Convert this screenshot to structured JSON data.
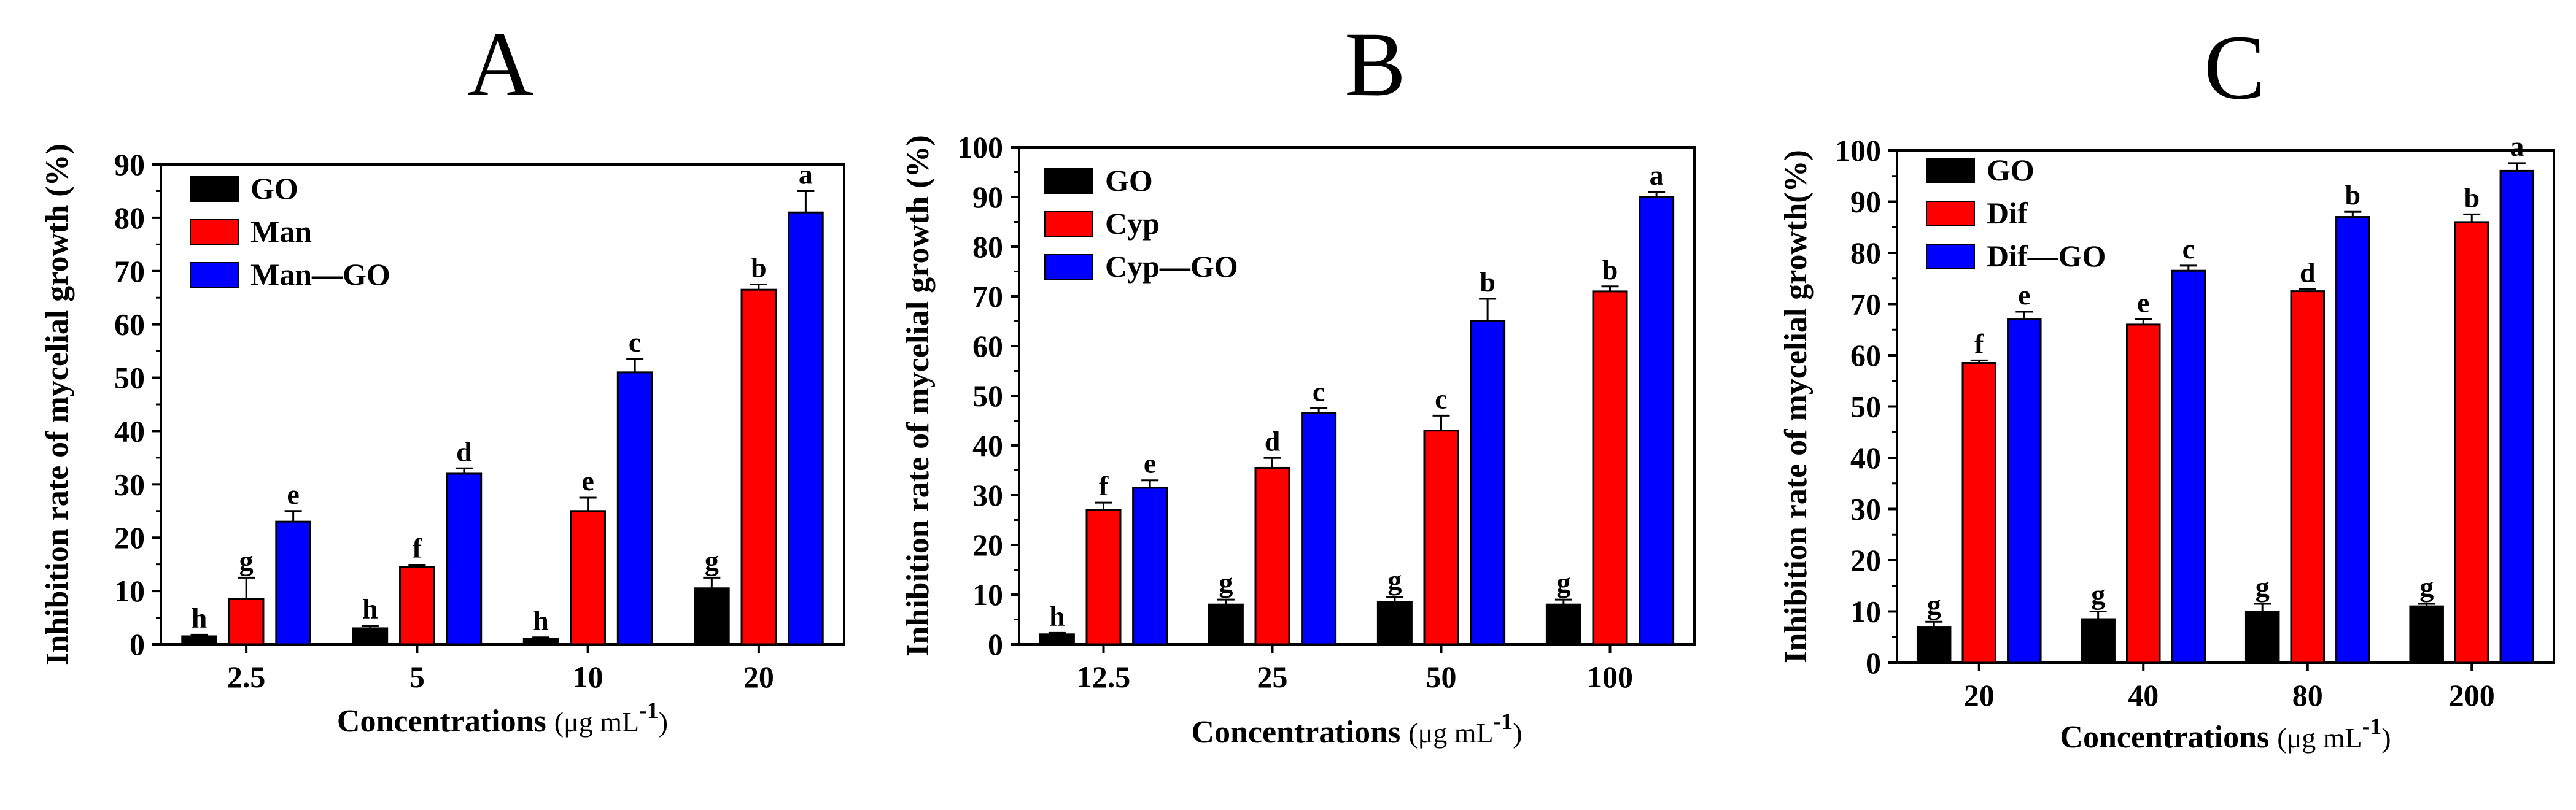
{
  "chart_data": [
    {
      "type": "bar",
      "panel_label": "A",
      "ylabel": "Inhibition rate of mycelial growth (%)",
      "xlabel_main": "Concentrations",
      "xlabel_unit": "(μg mL",
      "xlabel_sup": "-1",
      "xlabel_close": ")",
      "categories": [
        "2.5",
        "5",
        "10",
        "20"
      ],
      "ylim": [
        0,
        90
      ],
      "yticks": [
        "0",
        "10",
        "20",
        "30",
        "40",
        "50",
        "60",
        "70",
        "80",
        "90"
      ],
      "legend_position": "top-left",
      "series": [
        {
          "name": "GO",
          "color": "#000000",
          "values": [
            1.5,
            3,
            1,
            10.5
          ],
          "errors": [
            0.3,
            0.5,
            0.3,
            2
          ],
          "labels": [
            "h",
            "h",
            "h",
            "g"
          ]
        },
        {
          "name": "Man",
          "color": "#ff0000",
          "values": [
            8.5,
            14.5,
            25,
            66.5
          ],
          "errors": [
            4,
            0.4,
            2.5,
            1
          ],
          "labels": [
            "g",
            "f",
            "e",
            "b"
          ]
        },
        {
          "name": "Man—GO",
          "color": "#0000ff",
          "values": [
            23,
            32,
            51,
            81
          ],
          "errors": [
            2,
            1,
            2.5,
            4
          ],
          "labels": [
            "e",
            "d",
            "c",
            "a"
          ]
        }
      ]
    },
    {
      "type": "bar",
      "panel_label": "B",
      "ylabel": "Inhibition rate of mycelial growth (%)",
      "xlabel_main": "Concentrations",
      "xlabel_unit": "(μg mL",
      "xlabel_sup": "-1",
      "xlabel_close": ")",
      "categories": [
        "12.5",
        "25",
        "50",
        "100"
      ],
      "ylim": [
        0,
        100
      ],
      "yticks": [
        "0",
        "10",
        "20",
        "30",
        "40",
        "50",
        "60",
        "70",
        "80",
        "90",
        "100"
      ],
      "legend_position": "top-left",
      "series": [
        {
          "name": "GO",
          "color": "#000000",
          "values": [
            2,
            8,
            8.5,
            8
          ],
          "errors": [
            0.3,
            1,
            1,
            1
          ],
          "labels": [
            "h",
            "g",
            "g",
            "g"
          ]
        },
        {
          "name": "Cyp",
          "color": "#ff0000",
          "values": [
            27,
            35.5,
            43,
            71
          ],
          "errors": [
            1.5,
            2,
            3,
            1
          ],
          "labels": [
            "f",
            "d",
            "c",
            "b"
          ]
        },
        {
          "name": "Cyp—GO",
          "color": "#0000ff",
          "values": [
            31.5,
            46.5,
            65,
            90
          ],
          "errors": [
            1.5,
            1,
            4.5,
            1
          ],
          "labels": [
            "e",
            "c",
            "b",
            "a"
          ]
        }
      ]
    },
    {
      "type": "bar",
      "panel_label": "C",
      "ylabel": "Inhibition rate of mycelial growth(%)",
      "xlabel_main": "Concentrations",
      "xlabel_unit": "(μg mL",
      "xlabel_sup": "-1",
      "xlabel_close": ")",
      "categories": [
        "20",
        "40",
        "80",
        "200"
      ],
      "ylim": [
        0,
        100
      ],
      "yticks": [
        "0",
        "10",
        "20",
        "30",
        "40",
        "50",
        "60",
        "70",
        "80",
        "90",
        "100"
      ],
      "legend_position": "top-left",
      "series": [
        {
          "name": "GO",
          "color": "#000000",
          "values": [
            7,
            8.5,
            10,
            11
          ],
          "errors": [
            1,
            1.5,
            1.5,
            0.5
          ],
          "labels": [
            "g",
            "g",
            "g",
            "g"
          ]
        },
        {
          "name": "Dif",
          "color": "#ff0000",
          "values": [
            58.5,
            66,
            72.5,
            86
          ],
          "errors": [
            0.5,
            1,
            0.4,
            1.5
          ],
          "labels": [
            "f",
            "e",
            "d",
            "b"
          ]
        },
        {
          "name": "Dif—GO",
          "color": "#0000ff",
          "values": [
            67,
            76.5,
            87,
            96
          ],
          "errors": [
            1.5,
            1,
            1,
            1.5
          ],
          "labels": [
            "e",
            "c",
            "b",
            "a"
          ]
        }
      ]
    }
  ]
}
